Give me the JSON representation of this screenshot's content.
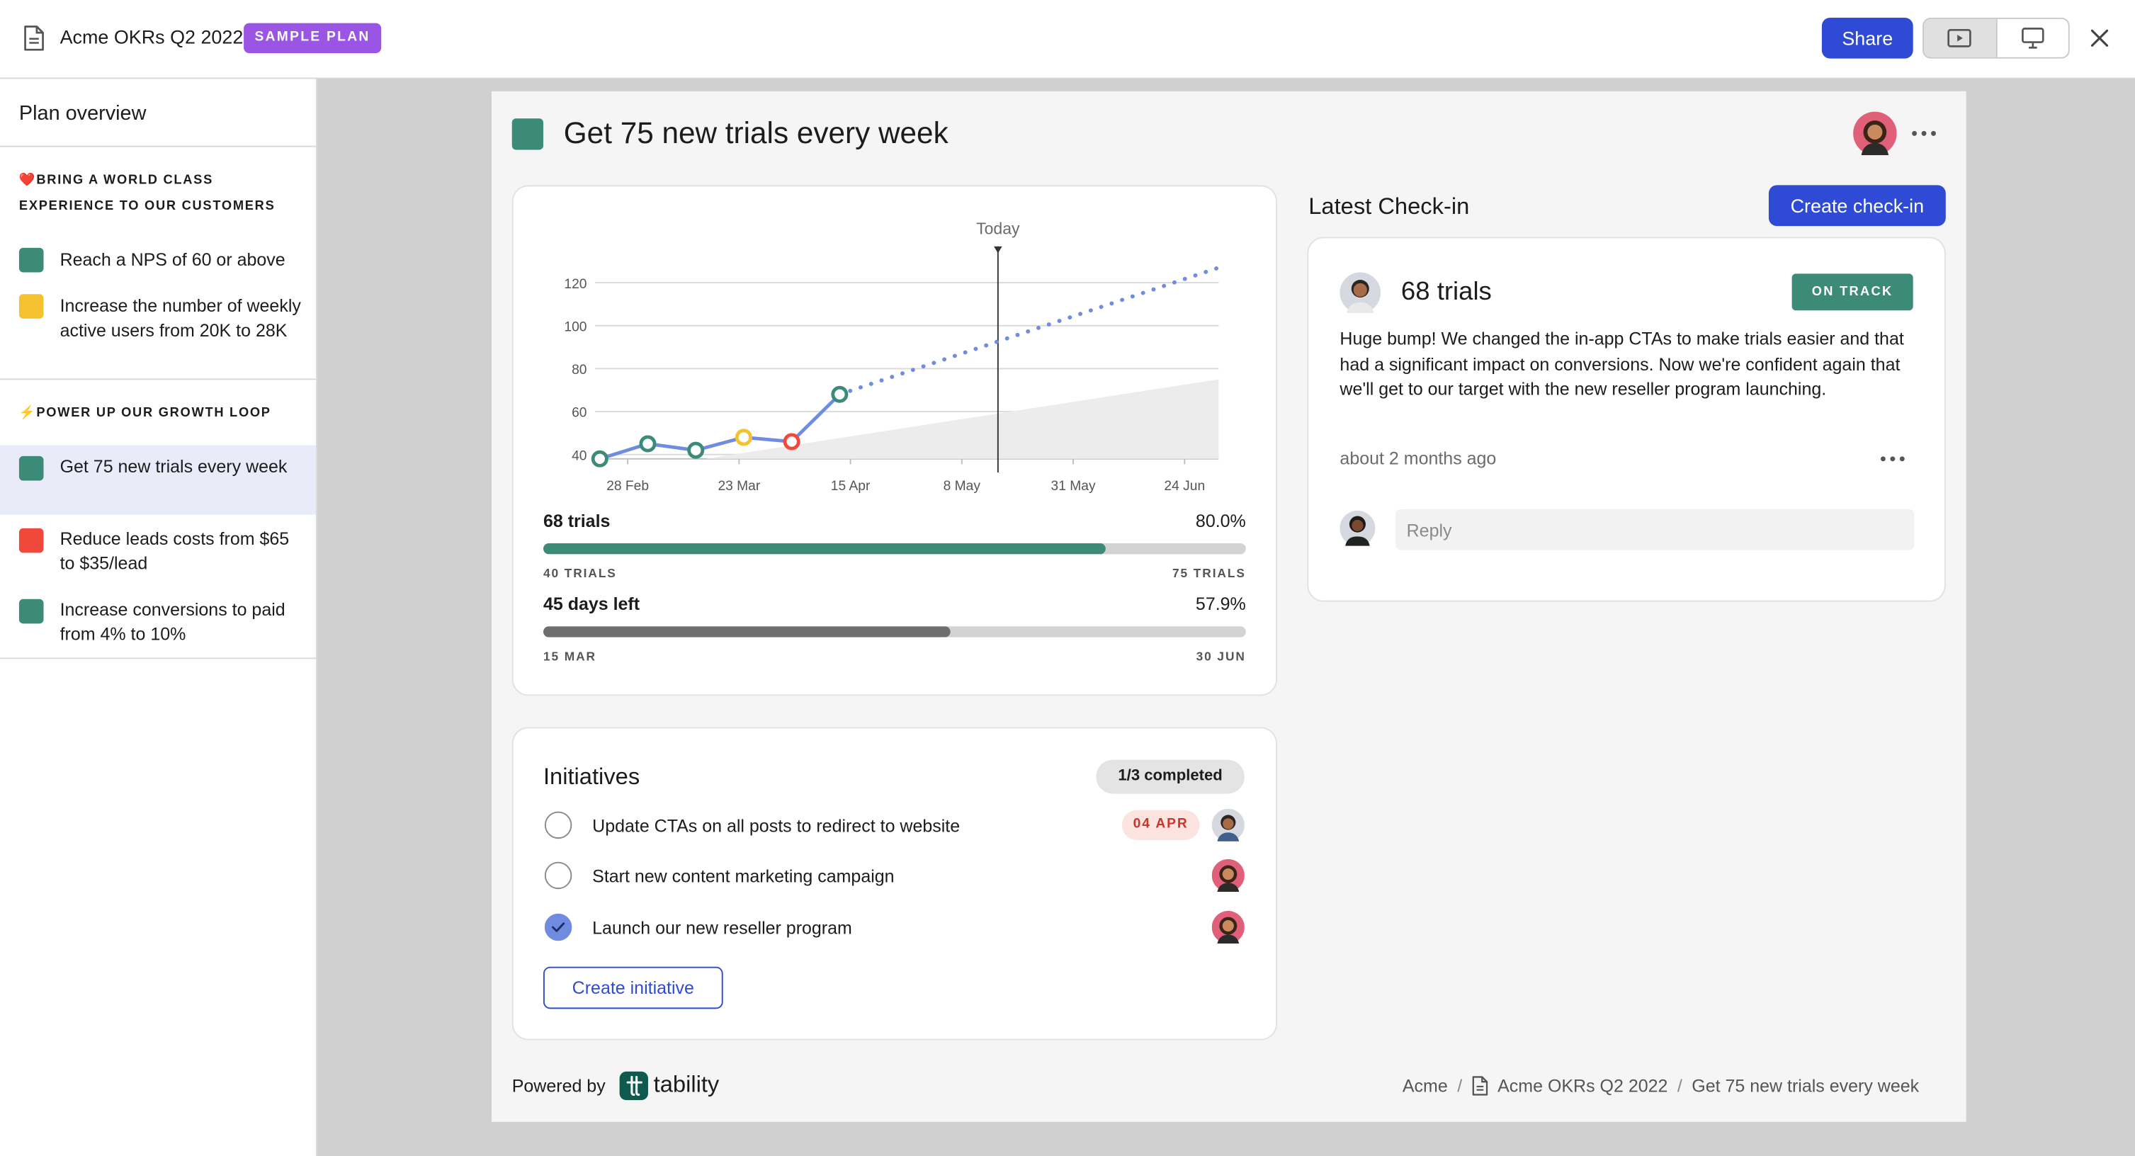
{
  "topbar": {
    "plan_title": "Acme OKRs Q2 2022",
    "badge": "SAMPLE PLAN",
    "share_label": "Share",
    "icons": [
      "document-icon",
      "presentation-icon",
      "monitor-icon",
      "close-icon"
    ]
  },
  "sidebar": {
    "title": "Plan overview",
    "objectives": [
      {
        "emoji": "❤️",
        "title": "BRING A WORLD CLASS EXPERIENCE TO OUR CUSTOMERS",
        "results": [
          {
            "label": "Reach a NPS of 60 or above",
            "color": "#3c8b78"
          },
          {
            "label": "Increase the number of weekly active users from 20K to 28K",
            "color": "#f4c12f"
          }
        ]
      },
      {
        "emoji": "⚡",
        "title": "POWER UP OUR GROWTH LOOP",
        "results": [
          {
            "label": "Get 75 new trials every week",
            "color": "#3c8b78",
            "active": true
          },
          {
            "label": "Reduce leads costs from $65 to $35/lead",
            "color": "#f0483b"
          },
          {
            "label": "Increase conversions to paid from 4% to 10%",
            "color": "#3c8b78"
          }
        ]
      }
    ]
  },
  "goal": {
    "title": "Get 75 new trials every week",
    "color": "#3c8b78"
  },
  "chart_data": {
    "type": "line",
    "today_label": "Today",
    "x_ticks": [
      "28 Feb",
      "23 Mar",
      "15 Apr",
      "8 May",
      "31 May",
      "24 Jun"
    ],
    "y_ticks": [
      40,
      60,
      80,
      100,
      120
    ],
    "ylim": [
      38,
      128
    ],
    "xlim": [
      "2022-02-20",
      "2022-06-30"
    ],
    "today": "2022-05-15",
    "grid": true,
    "series": [
      {
        "points": [
          {
            "x": "2022-02-21",
            "y": 38,
            "status": "on-track"
          },
          {
            "x": "2022-03-03",
            "y": 45,
            "status": "on-track"
          },
          {
            "x": "2022-03-13",
            "y": 42,
            "status": "on-track"
          },
          {
            "x": "2022-03-23",
            "y": 48,
            "status": "at-risk"
          },
          {
            "x": "2022-04-02",
            "y": 46,
            "status": "off-track"
          },
          {
            "x": "2022-04-12",
            "y": 68,
            "status": "on-track"
          }
        ]
      },
      {
        "points": [
          {
            "x": "2022-04-12",
            "y": 68
          },
          {
            "x": "2022-06-30",
            "y": 127
          }
        ]
      },
      {
        "points": [
          {
            "x": "2022-03-15",
            "y": 40
          },
          {
            "x": "2022-06-30",
            "y": 75
          }
        ]
      }
    ],
    "status_colors": {
      "on-track": "#3c8b78",
      "at-risk": "#f4c12f",
      "off-track": "#f0483b"
    }
  },
  "progress": {
    "value_label": "68 trials",
    "value_pct": "80.0%",
    "value_fraction": 0.8,
    "start_label": "40 TRIALS",
    "target_label": "75 TRIALS",
    "time_label": "45 days left",
    "time_pct": "57.9%",
    "time_fraction": 0.579,
    "start_date": "15 MAR",
    "end_date": "30 JUN"
  },
  "initiatives": {
    "title": "Initiatives",
    "completed": "1/3 completed",
    "items": [
      {
        "label": "Update CTAs on all posts to redirect to website",
        "done": false,
        "due": "04 APR"
      },
      {
        "label": "Start new content marketing campaign",
        "done": false
      },
      {
        "label": "Launch our new reseller program",
        "done": true
      }
    ],
    "create_label": "Create initiative"
  },
  "checkin": {
    "section_title": "Latest Check-in",
    "create_label": "Create check-in",
    "value": "68 trials",
    "status": "ON TRACK",
    "body": "Huge bump! We changed the in-app CTAs to make trials easier and that had a significant impact on conversions. Now we're confident again that we'll get to our target with the new reseller program launching.",
    "time": "about 2 months ago",
    "reply_placeholder": "Reply"
  },
  "footer": {
    "powered_by": "Powered by",
    "brand": "tability",
    "breadcrumb": [
      "Acme",
      "Acme OKRs Q2 2022",
      "Get 75 new trials every week"
    ]
  },
  "colors": {
    "accent": "#2f4bd6",
    "on_track": "#3c8b78",
    "chart_line": "#6f8ce0"
  }
}
